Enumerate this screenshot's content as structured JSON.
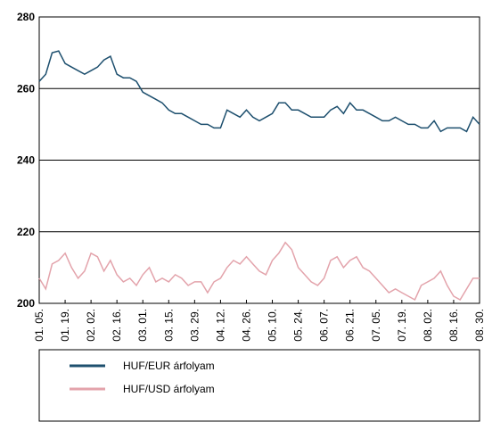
{
  "chart_data": {
    "type": "line",
    "categories": [
      "01. 05.",
      null,
      null,
      null,
      "01. 19.",
      null,
      null,
      null,
      "02. 02.",
      null,
      null,
      null,
      "02. 16.",
      null,
      null,
      null,
      "03. 01.",
      null,
      null,
      null,
      "03. 15.",
      null,
      null,
      null,
      "03. 29.",
      null,
      null,
      null,
      "04. 12.",
      null,
      null,
      null,
      "04. 26.",
      null,
      null,
      null,
      "05. 10.",
      null,
      null,
      null,
      "05. 24.",
      null,
      null,
      null,
      "06. 07.",
      null,
      null,
      null,
      "06. 21.",
      null,
      null,
      null,
      "07. 05.",
      null,
      null,
      null,
      "07. 19.",
      null,
      null,
      null,
      "08. 02.",
      null,
      null,
      null,
      "08. 16.",
      null,
      null,
      null,
      "08. 30."
    ],
    "series": [
      {
        "name": "HUF/EUR árfolyam",
        "color": "#1d4f6e",
        "values": [
          262,
          264,
          270,
          270.5,
          267,
          266,
          265,
          264,
          265,
          266,
          268,
          269,
          264,
          263,
          263,
          262,
          259,
          258,
          257,
          256,
          254,
          253,
          253,
          252,
          251,
          250,
          250,
          249,
          249,
          254,
          253,
          252,
          254,
          252,
          251,
          252,
          253,
          256,
          256,
          254,
          254,
          253,
          252,
          252,
          252,
          254,
          255,
          253,
          256,
          254,
          254,
          253,
          252,
          251,
          251,
          252,
          251,
          250,
          250,
          249,
          249,
          251,
          248,
          249,
          249,
          249,
          248,
          252,
          250
        ]
      },
      {
        "name": "HUF/USD árfolyam",
        "color": "#e3a3ab",
        "values": [
          207,
          204,
          211,
          212,
          214,
          210,
          207,
          209,
          214,
          213,
          209,
          212,
          208,
          206,
          207,
          205,
          208,
          210,
          206,
          207,
          206,
          208,
          207,
          205,
          206,
          206,
          203,
          206,
          207,
          210,
          212,
          211,
          213,
          211,
          209,
          208,
          212,
          214,
          217,
          215,
          210,
          208,
          206,
          205,
          207,
          212,
          213,
          210,
          212,
          213,
          210,
          209,
          207,
          205,
          203,
          204,
          203,
          202,
          201,
          205,
          206,
          207,
          209,
          205,
          202,
          201,
          204,
          207,
          207
        ]
      }
    ],
    "ylim": [
      200,
      280
    ],
    "yticks": [
      200,
      220,
      240,
      260,
      280
    ],
    "grid": true
  }
}
